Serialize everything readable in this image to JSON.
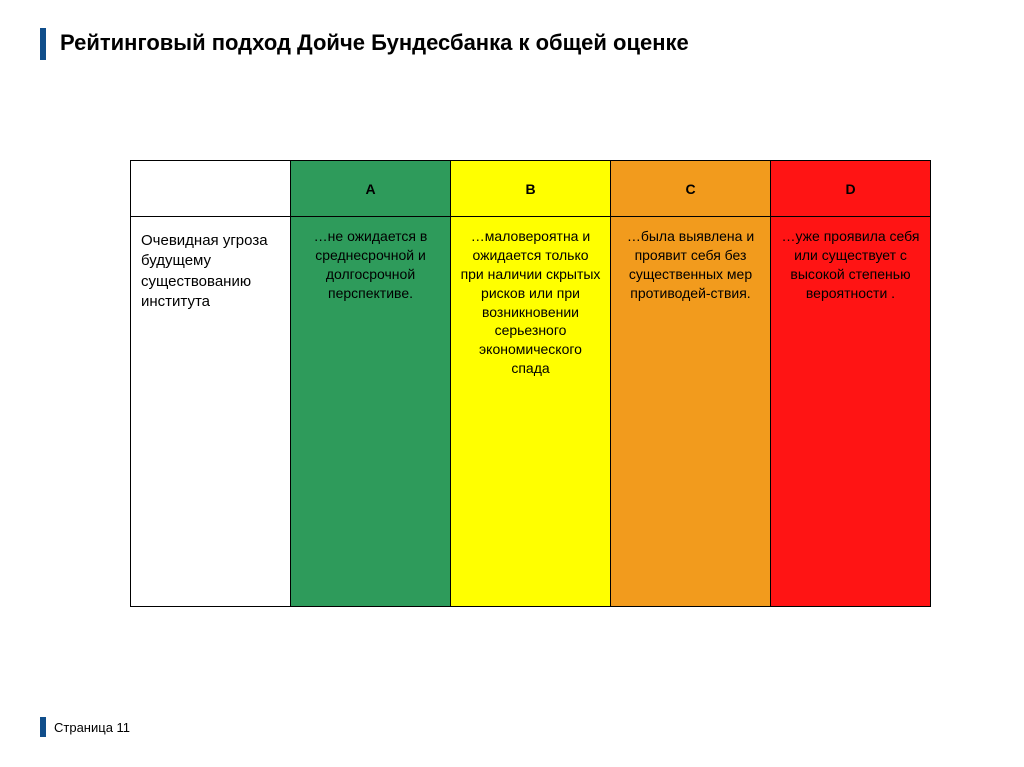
{
  "slide": {
    "title": "Рейтинговый подход Дойче Бундесбанка к общей оценке",
    "page_label": "Страница 11",
    "accent_color": "#104e8b"
  },
  "table": {
    "type": "table",
    "row_header": "Очевидная угроза будущему существованию института",
    "columns": [
      {
        "label": "A",
        "color": "#2e9b5b",
        "text": "…не ожидается в среднесрочной и долгосрочной перспективе."
      },
      {
        "label": "B",
        "color": "#ffff00",
        "text": "…маловероятна и ожидается только при наличии скрытых рисков или при возникновении серьезного экономического спада"
      },
      {
        "label": "C",
        "color": "#f29b1d",
        "text": "…была выявлена и проявит себя без существенных мер противодей-ствия."
      },
      {
        "label": "D",
        "color": "#ff1414",
        "text": "…уже проявила себя или существует с высокой степенью вероятности ."
      }
    ],
    "header_fontsize": 15,
    "cell_fontsize": 14,
    "border_color": "#000000",
    "background_color": "#ffffff"
  }
}
